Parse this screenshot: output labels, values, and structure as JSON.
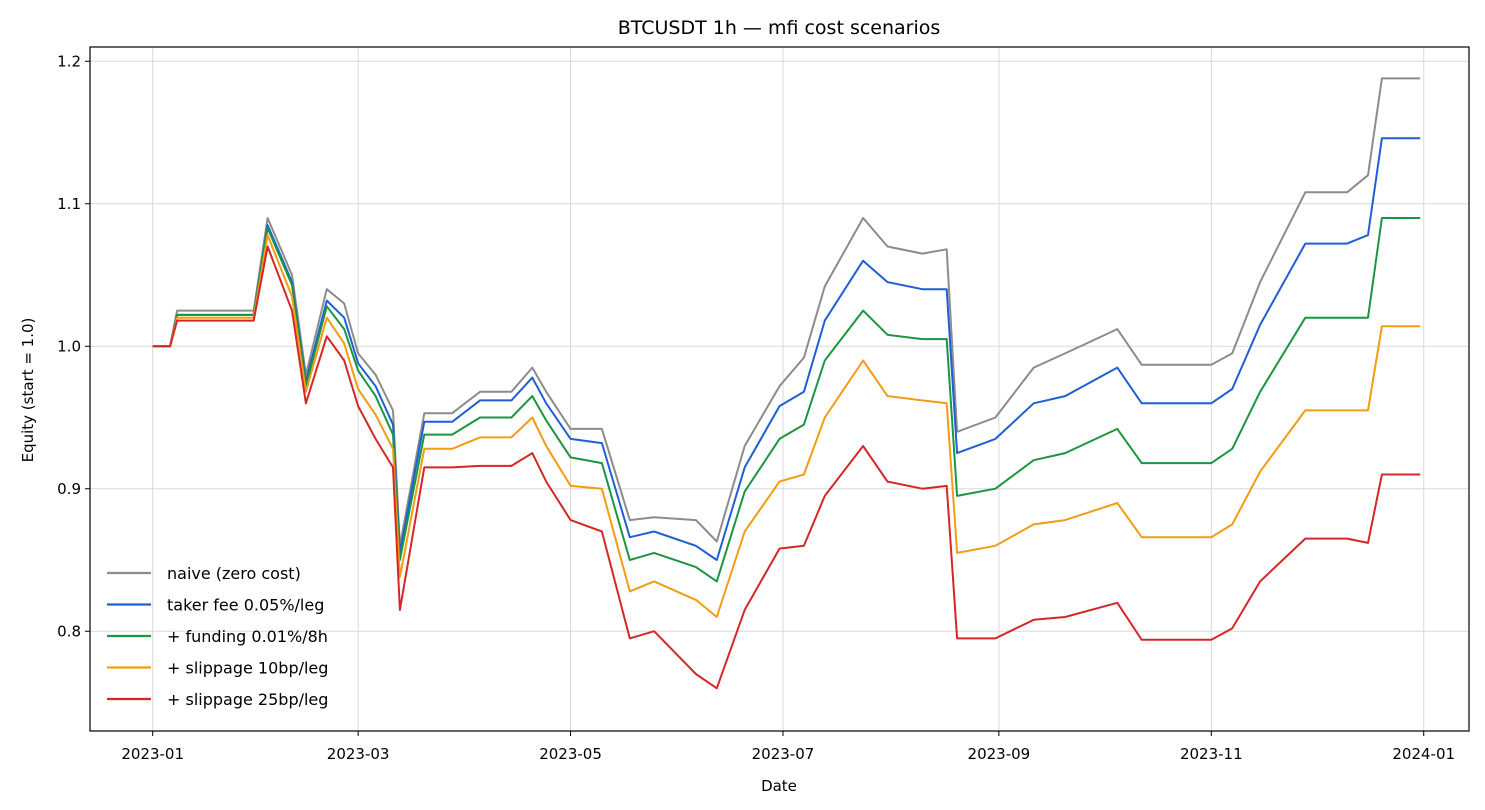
{
  "chart_data": {
    "type": "line",
    "title": "BTCUSDT 1h — mfi cost scenarios",
    "xlabel": "Date",
    "ylabel": "Equity (start = 1.0)",
    "x_ticks": [
      "2023-01",
      "2023-03",
      "2023-05",
      "2023-07",
      "2023-09",
      "2023-11",
      "2024-01"
    ],
    "y_ticks": [
      "0.8",
      "0.9",
      "1.0",
      "1.1",
      "1.2"
    ],
    "ylim": [
      0.73,
      1.21
    ],
    "xlim": [
      "2022-12-14",
      "2024-01-14"
    ],
    "grid": true,
    "legend_position": "lower-left",
    "x": [
      "2023-01-01",
      "2023-01-06",
      "2023-01-08",
      "2023-01-30",
      "2023-02-03",
      "2023-02-10",
      "2023-02-14",
      "2023-02-20",
      "2023-02-25",
      "2023-03-01",
      "2023-03-06",
      "2023-03-11",
      "2023-03-13",
      "2023-03-20",
      "2023-03-28",
      "2023-04-05",
      "2023-04-14",
      "2023-04-20",
      "2023-04-24",
      "2023-05-01",
      "2023-05-10",
      "2023-05-18",
      "2023-05-25",
      "2023-06-06",
      "2023-06-12",
      "2023-06-20",
      "2023-06-30",
      "2023-07-07",
      "2023-07-13",
      "2023-07-24",
      "2023-07-31",
      "2023-08-10",
      "2023-08-17",
      "2023-08-20",
      "2023-08-31",
      "2023-09-11",
      "2023-09-20",
      "2023-10-05",
      "2023-10-12",
      "2023-10-25",
      "2023-11-01",
      "2023-11-07",
      "2023-11-15",
      "2023-11-28",
      "2023-12-10",
      "2023-12-16",
      "2023-12-20",
      "2023-12-31"
    ],
    "series": [
      {
        "name": "naive (zero cost)",
        "color": "#8c8c8c",
        "values": [
          1.0,
          1.0,
          1.025,
          1.025,
          1.09,
          1.05,
          0.98,
          1.04,
          1.03,
          0.995,
          0.98,
          0.955,
          0.86,
          0.953,
          0.953,
          0.968,
          0.968,
          0.985,
          0.968,
          0.942,
          0.942,
          0.878,
          0.88,
          0.878,
          0.863,
          0.93,
          0.972,
          0.992,
          1.042,
          1.09,
          1.07,
          1.065,
          1.068,
          0.94,
          0.95,
          0.985,
          0.995,
          1.012,
          0.987,
          0.987,
          0.987,
          0.995,
          1.045,
          1.108,
          1.108,
          1.12,
          1.188,
          1.188
        ]
      },
      {
        "name": "taker fee 0.05%/leg",
        "color": "#1f5fd6",
        "values": [
          1.0,
          1.0,
          1.022,
          1.022,
          1.085,
          1.045,
          0.975,
          1.032,
          1.02,
          0.988,
          0.972,
          0.945,
          0.855,
          0.947,
          0.947,
          0.962,
          0.962,
          0.978,
          0.96,
          0.935,
          0.932,
          0.866,
          0.87,
          0.86,
          0.85,
          0.915,
          0.958,
          0.968,
          1.018,
          1.06,
          1.045,
          1.04,
          1.04,
          0.925,
          0.935,
          0.96,
          0.965,
          0.985,
          0.96,
          0.96,
          0.96,
          0.97,
          1.015,
          1.072,
          1.072,
          1.078,
          1.146,
          1.146
        ]
      },
      {
        "name": "+ funding 0.01%/8h",
        "color": "#1a9641",
        "values": [
          1.0,
          1.0,
          1.022,
          1.022,
          1.083,
          1.043,
          0.972,
          1.028,
          1.012,
          0.983,
          0.965,
          0.938,
          0.85,
          0.938,
          0.938,
          0.95,
          0.95,
          0.965,
          0.948,
          0.922,
          0.918,
          0.85,
          0.855,
          0.845,
          0.835,
          0.898,
          0.935,
          0.945,
          0.99,
          1.025,
          1.008,
          1.005,
          1.005,
          0.895,
          0.9,
          0.92,
          0.925,
          0.942,
          0.918,
          0.918,
          0.918,
          0.928,
          0.968,
          1.02,
          1.02,
          1.02,
          1.09,
          1.09
        ]
      },
      {
        "name": "+ slippage 10bp/leg",
        "color": "#f39c12",
        "values": [
          1.0,
          1.0,
          1.02,
          1.02,
          1.078,
          1.035,
          0.968,
          1.02,
          1.002,
          0.97,
          0.952,
          0.928,
          0.838,
          0.928,
          0.928,
          0.936,
          0.936,
          0.95,
          0.93,
          0.902,
          0.9,
          0.828,
          0.835,
          0.822,
          0.81,
          0.87,
          0.905,
          0.91,
          0.95,
          0.99,
          0.965,
          0.962,
          0.96,
          0.855,
          0.86,
          0.875,
          0.878,
          0.89,
          0.866,
          0.866,
          0.866,
          0.875,
          0.912,
          0.955,
          0.955,
          0.955,
          1.014,
          1.014
        ]
      },
      {
        "name": "+ slippage 25bp/leg",
        "color": "#d62728",
        "values": [
          1.0,
          1.0,
          1.018,
          1.018,
          1.07,
          1.025,
          0.96,
          1.007,
          0.99,
          0.958,
          0.935,
          0.915,
          0.815,
          0.915,
          0.915,
          0.916,
          0.916,
          0.925,
          0.905,
          0.878,
          0.87,
          0.795,
          0.8,
          0.77,
          0.76,
          0.815,
          0.858,
          0.86,
          0.895,
          0.93,
          0.905,
          0.9,
          0.902,
          0.795,
          0.795,
          0.808,
          0.81,
          0.82,
          0.794,
          0.794,
          0.794,
          0.802,
          0.835,
          0.865,
          0.865,
          0.862,
          0.91,
          0.91
        ]
      }
    ]
  }
}
